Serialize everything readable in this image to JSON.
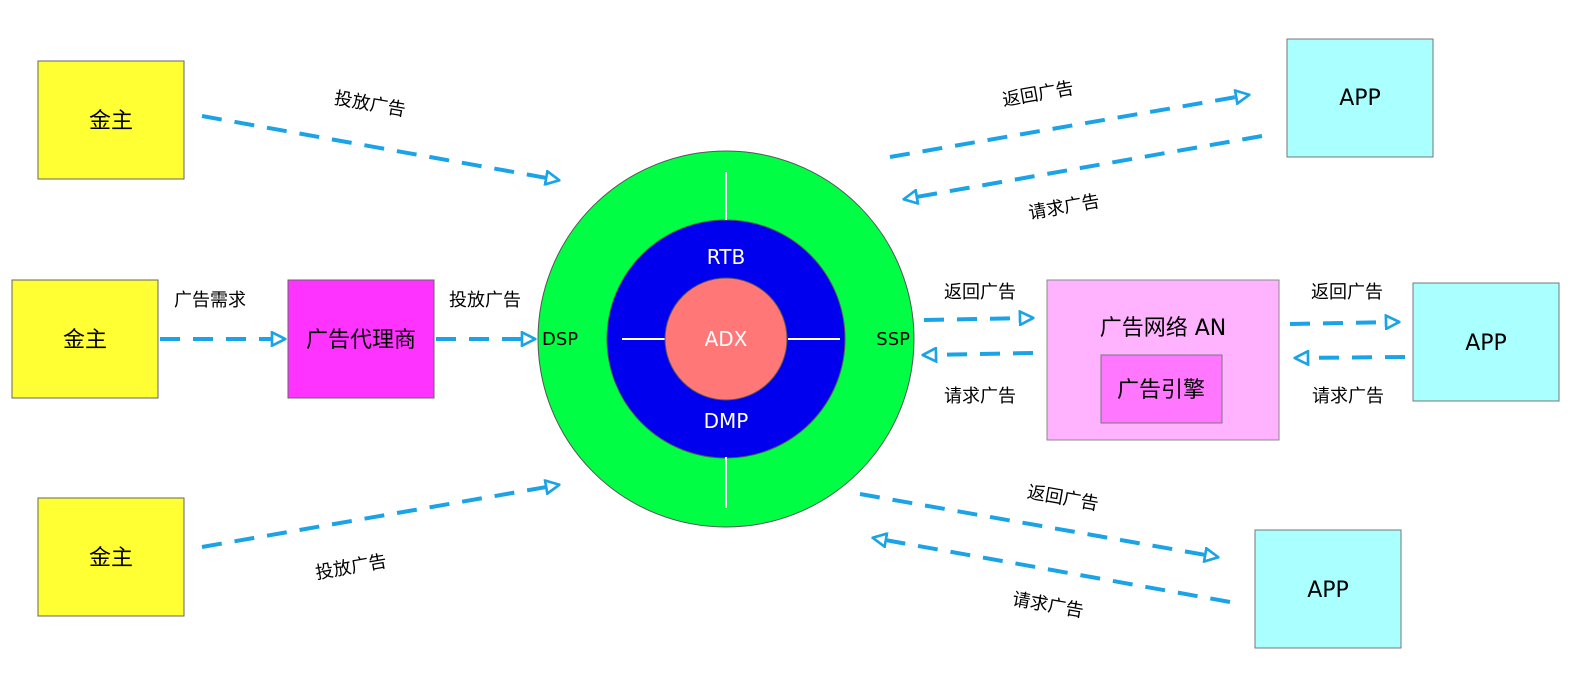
{
  "colors": {
    "advertiser": "#ffff33",
    "agency": "#ff33ff",
    "app": "#aaffff",
    "ad_network": "#ffb3ff",
    "ad_engine": "#ff77ff",
    "outer_ring": "#00ff44",
    "inner_ring": "#0000ee",
    "core": "#ff7777",
    "arrow": "#1aa3e6"
  },
  "nodes": {
    "advertiser_top": "金主",
    "advertiser_mid": "金主",
    "advertiser_bottom": "金主",
    "agency": "广告代理商",
    "ad_network": "广告网络 AN",
    "ad_engine": "广告引擎",
    "app_top": "APP",
    "app_mid": "APP",
    "app_bottom": "APP"
  },
  "hub": {
    "core": "ADX",
    "top": "RTB",
    "bottom": "DMP",
    "left": "DSP",
    "right": "SSP"
  },
  "labels": {
    "place_ad_top": "投放广告",
    "ad_demand": "广告需求",
    "place_ad_mid": "投放广告",
    "place_ad_bottom": "投放广告",
    "return_ad_top": "返回广告",
    "request_ad_top": "请求广告",
    "return_ad_ssp": "返回广告",
    "request_ad_ssp": "请求广告",
    "return_ad_an": "返回广告",
    "request_ad_an": "请求广告",
    "return_ad_bottom": "返回广告",
    "request_ad_bottom": "请求广告"
  }
}
